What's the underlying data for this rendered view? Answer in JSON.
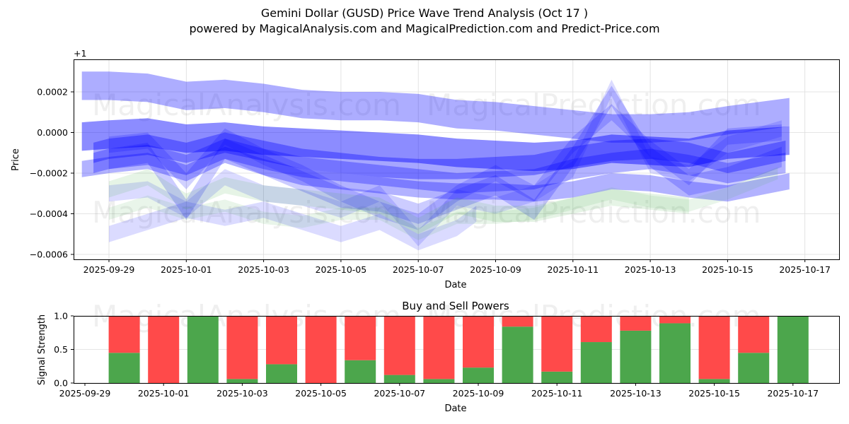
{
  "header": {
    "title": "Gemini Dollar (GUSD) Price Wave Trend Analysis (Oct 17 )",
    "subtitle": "powered by MagicalAnalysis.com and MagicalPrediction.com and Predict-Price.com"
  },
  "watermarks": {
    "left": "MagicalAnalysis.com",
    "right": "MagicalPrediction.com"
  },
  "colors": {
    "wave_blue": "#0000ff",
    "wave_green": "#4caf50",
    "buy": "#4ca64c",
    "sell": "#ff4a4a",
    "grid": "#dcdcdc"
  },
  "chart_data": [
    {
      "type": "area",
      "title": "Price Wave Trend",
      "xlabel": "Date",
      "ylabel": "Price",
      "offset_label": "+1",
      "ylim": [
        -0.00062,
        0.00036
      ],
      "xlim": [
        "2025-09-28",
        "2025-10-18"
      ],
      "grid": true,
      "x_ticks": [
        "2025-09-29",
        "2025-10-01",
        "2025-10-03",
        "2025-10-05",
        "2025-10-07",
        "2025-10-09",
        "2025-10-11",
        "2025-10-13",
        "2025-10-15",
        "2025-10-17"
      ],
      "y_ticks": [
        {
          "value": 0.0002,
          "label": "0.0002"
        },
        {
          "value": 0.0,
          "label": "0.0000"
        },
        {
          "value": -0.0002,
          "label": "−0.0002"
        },
        {
          "value": -0.0004,
          "label": "−0.0004"
        },
        {
          "value": -0.0006,
          "label": "−0.0006"
        }
      ],
      "x_days": [
        0,
        1,
        2,
        3,
        4,
        5,
        6,
        7,
        8,
        9,
        10,
        11,
        12,
        13,
        14,
        15,
        16,
        17,
        18
      ],
      "x_start_date": "2025-09-28",
      "bands": [
        {
          "name": "upper-band",
          "color": "blue",
          "opacity": 0.32,
          "x_start": 0.3,
          "x_end": 18.6,
          "center": [
            0.00023,
            0.00023,
            0.00022,
            0.00018,
            0.00019,
            0.00017,
            0.00014,
            0.00013,
            0.00013,
            0.00012,
            9e-05,
            8e-05,
            6e-05,
            4e-05,
            2e-05,
            2e-05,
            3e-05,
            6e-05,
            0.0001
          ],
          "half_width": 7e-05
        },
        {
          "name": "main-band",
          "color": "blue",
          "opacity": 0.45,
          "x_start": 0.3,
          "x_end": 18.6,
          "center": [
            -2e-05,
            -1e-05,
            0.0,
            -3e-05,
            -2e-05,
            -4e-05,
            -5e-05,
            -6e-05,
            -7e-05,
            -8e-05,
            -0.0001,
            -0.00011,
            -0.00012,
            -0.00011,
            -8e-05,
            -9e-05,
            -0.0001,
            -6e-05,
            -4e-05
          ],
          "half_width": 7e-05
        },
        {
          "name": "core-band-1",
          "color": "blue",
          "opacity": 0.35,
          "x_start": 0.6,
          "x_end": 18.5,
          "center": [
            -0.0001,
            -8e-05,
            -6e-05,
            -0.0001,
            -5e-05,
            -9e-05,
            -0.00013,
            -0.00015,
            -0.00017,
            -0.00018,
            -0.00018,
            -0.00017,
            -0.00016,
            -0.00012,
            -9e-05,
            -8e-05,
            -0.0001,
            -0.00015,
            -9e-05
          ],
          "half_width": 5e-05
        },
        {
          "name": "core-band-2",
          "color": "blue",
          "opacity": 0.3,
          "x_start": 0.6,
          "x_end": 18.5,
          "center": [
            -0.00015,
            -0.00013,
            -0.00011,
            -0.00016,
            -8e-05,
            -0.00013,
            -0.00017,
            -0.00019,
            -0.00021,
            -0.00023,
            -0.00025,
            -0.00024,
            -0.00023,
            -0.00018,
            -0.00015,
            -0.00013,
            -0.00016,
            -0.0002,
            -0.00015
          ],
          "half_width": 5e-05
        },
        {
          "name": "lower-band",
          "color": "blue",
          "opacity": 0.3,
          "x_start": 0.3,
          "x_end": 18.6,
          "center": [
            -0.00018,
            -0.00016,
            -0.00014,
            -0.0002,
            -0.00011,
            -0.00017,
            -0.00022,
            -0.00024,
            -0.00026,
            -0.00028,
            -0.00029,
            -0.00029,
            -0.0003,
            -0.00028,
            -0.00024,
            -0.00025,
            -0.00028,
            -0.0003,
            -0.00024
          ],
          "half_width": 4e-05
        },
        {
          "name": "volatile-band-1",
          "color": "blue",
          "opacity": 0.2,
          "x_start": 1.0,
          "x_end": 18.4,
          "center": [
            -0.00012,
            -0.00013,
            -0.0001,
            -0.00038,
            -8e-05,
            -0.00016,
            -0.00024,
            -0.00032,
            -0.00034,
            -0.0004,
            -0.00033,
            -0.00026,
            -0.00038,
            -0.00012,
            0.00018,
            -0.00012,
            -0.00026,
            -0.00022,
            -0.00012
          ],
          "half_width": 5e-05
        },
        {
          "name": "volatile-band-2",
          "color": "blue",
          "opacity": 0.18,
          "x_start": 1.0,
          "x_end": 18.4,
          "center": [
            -8e-05,
            -6e-05,
            -4e-05,
            -0.00024,
            -2e-05,
            -0.00012,
            -0.0002,
            -0.0003,
            -0.00038,
            -0.00044,
            -0.0003,
            -0.0002,
            -0.0003,
            -6e-05,
            0.0001,
            -8e-05,
            -0.00022,
            -2e-05,
            0.0
          ],
          "half_width": 4e-05
        },
        {
          "name": "volatile-band-3",
          "color": "blue",
          "opacity": 0.14,
          "x_start": 1.0,
          "x_end": 18.4,
          "center": [
            -0.0004,
            -0.0003,
            -0.00028,
            -0.00038,
            -0.00022,
            -0.0003,
            -0.00032,
            -0.00038,
            -0.0003,
            -0.00052,
            -0.00032,
            -0.00036,
            -0.0003,
            -0.00018,
            0.00022,
            -0.00016,
            -0.0002,
            -6e-05,
            2e-05
          ],
          "half_width": 4e-05
        },
        {
          "name": "low-band",
          "color": "blue",
          "opacity": 0.14,
          "x_start": 1.0,
          "x_end": 10.5,
          "center": [
            -0.00056,
            -0.0005,
            -0.00044,
            -0.00038,
            -0.00042,
            -0.00038,
            -0.00044,
            -0.0005,
            -0.00044,
            -0.00054,
            -0.00047,
            -0.0004
          ],
          "half_width": 4e-05
        },
        {
          "name": "green-band-1",
          "color": "green",
          "opacity": 0.14,
          "x_start": 1.0,
          "x_end": 16.0,
          "center": [
            -0.00034,
            -0.00028,
            -0.00022,
            -0.00034,
            -0.00026,
            -0.0003,
            -0.00032,
            -0.00034,
            -0.00036,
            -0.00046,
            -0.00036,
            -0.0004,
            -0.0004,
            -0.00036,
            -0.00032,
            -0.00034,
            -0.00036
          ],
          "half_width": 4e-05
        },
        {
          "name": "green-band-2",
          "color": "green",
          "opacity": 0.12,
          "x_start": 1.0,
          "x_end": 18.3,
          "center": [
            -0.00036,
            -0.0004,
            -0.00034,
            -0.0004,
            -0.00036,
            -0.00042,
            -0.00044,
            -0.0004,
            -0.0004,
            -0.0005,
            -0.00042,
            -0.00042,
            -0.0004,
            -0.00035,
            -0.0003,
            -0.00034,
            -0.00036,
            -0.0003,
            -0.0002
          ],
          "half_width": 3e-05
        }
      ]
    },
    {
      "type": "bar",
      "stacked": true,
      "title": "Buy and Sell Powers",
      "xlabel": "Date",
      "ylabel": "Signal Strength",
      "ylim": [
        0,
        1.0
      ],
      "grid": true,
      "x_ticks": [
        "2025-09-29",
        "2025-10-01",
        "2025-10-03",
        "2025-10-05",
        "2025-10-07",
        "2025-10-09",
        "2025-10-11",
        "2025-10-13",
        "2025-10-15",
        "2025-10-17"
      ],
      "y_ticks": [
        {
          "value": 0.0,
          "label": "0.0"
        },
        {
          "value": 0.5,
          "label": "0.5"
        },
        {
          "value": 1.0,
          "label": "1.0"
        }
      ],
      "categories": [
        "2025-09-30",
        "2025-10-01",
        "2025-10-02",
        "2025-10-03",
        "2025-10-04",
        "2025-10-05",
        "2025-10-06",
        "2025-10-07",
        "2025-10-08",
        "2025-10-09",
        "2025-10-10",
        "2025-10-11",
        "2025-10-12",
        "2025-10-13",
        "2025-10-14",
        "2025-10-15",
        "2025-10-16",
        "2025-10-17"
      ],
      "series": [
        {
          "name": "Buy",
          "color": "green",
          "values": [
            0.45,
            0.0,
            1.0,
            0.06,
            0.28,
            0.0,
            0.34,
            0.12,
            0.06,
            0.23,
            0.84,
            0.17,
            0.61,
            0.78,
            0.89,
            0.06,
            0.45,
            1.0
          ]
        },
        {
          "name": "Sell",
          "color": "red",
          "values": [
            0.55,
            1.0,
            0.0,
            0.94,
            0.72,
            1.0,
            0.66,
            0.88,
            0.94,
            0.77,
            0.16,
            0.83,
            0.39,
            0.22,
            0.11,
            0.94,
            0.55,
            0.0
          ]
        }
      ]
    }
  ]
}
